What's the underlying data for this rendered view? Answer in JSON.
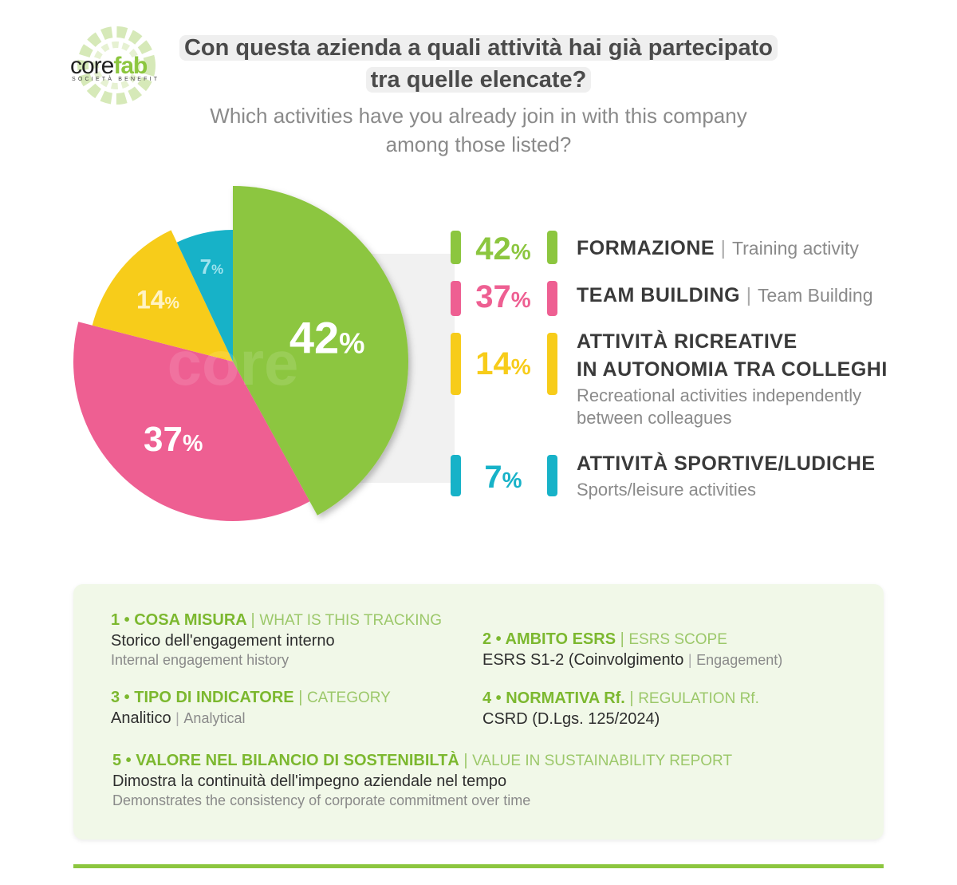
{
  "logo": {
    "word_a": "core",
    "word_b": "fab",
    "sub": "SOCIETÀ BENEFIT"
  },
  "header": {
    "title_line1": "Con questa azienda a quali attività hai già partecipato",
    "title_line2": "tra quelle elencate?",
    "subtitle_line1": "Which activities have you already join in with this company",
    "subtitle_line2": "among those listed?"
  },
  "colors": {
    "green": "#8cc63f",
    "pink": "#ee5f92",
    "yellow": "#f7cc1a",
    "cyan": "#17b2c8"
  },
  "chart_data": {
    "type": "pie",
    "title": "Con questa azienda a quali attività hai già partecipato tra quelle elencate?",
    "unit": "%",
    "slices": [
      {
        "label": "FORMAZIONE",
        "label_en": "Training activity",
        "value": 42,
        "color": "#8cc63f"
      },
      {
        "label": "TEAM BUILDING",
        "label_en": "Team Building",
        "value": 37,
        "color": "#ee5f92"
      },
      {
        "label": "ATTIVITÀ RICREATIVE IN AUTONOMIA TRA COLLEGHI",
        "label_en": "Recreational activities independently between colleagues",
        "value": 14,
        "color": "#f7cc1a"
      },
      {
        "label": "ATTIVITÀ SPORTIVE/LUDICHE",
        "label_en": "Sports/leisure activities",
        "value": 7,
        "color": "#17b2c8"
      }
    ]
  },
  "legend": [
    {
      "pct": "42",
      "title": "FORMAZIONE",
      "title_en": "Training activity"
    },
    {
      "pct": "37",
      "title": "TEAM BUILDING",
      "title_en": "Team Building"
    },
    {
      "pct": "14",
      "title_l1": "ATTIVITÀ RICREATIVE",
      "title_l2": "IN AUTONOMIA TRA COLLEGHI",
      "desc_l1": "Recreational activities independently",
      "desc_l2": "between colleagues"
    },
    {
      "pct": "7",
      "title": "ATTIVITÀ SPORTIVE/LUDICHE",
      "desc": "Sports/leisure activities"
    }
  ],
  "percent_sign": "%",
  "separator": "|",
  "info": {
    "i1": {
      "head": "1 • COSA MISURA",
      "head_en": "WHAT IS THIS TRACKING",
      "value": "Storico dell'engagement interno",
      "value_en": "Internal engagement history"
    },
    "i2": {
      "head": "2 • AMBITO ESRS",
      "head_en": "ESRS SCOPE",
      "value": "ESRS S1-2 (Coinvolgimento",
      "value_en": "Engagement)"
    },
    "i3": {
      "head": "3 • TIPO DI INDICATORE",
      "head_en": "CATEGORY",
      "value": "Analitico",
      "value_en": "Analytical"
    },
    "i4": {
      "head": "4 • NORMATIVA Rf.",
      "head_en": "REGULATION Rf.",
      "value": "CSRD (D.Lgs. 125/2024)"
    },
    "i5": {
      "head": "5 • VALORE NEL BILANCIO DI SOSTENIBILTÀ",
      "head_en": "VALUE IN SUSTAINABILITY REPORT",
      "value": "Dimostra la continuità dell'impegno aziendale nel tempo",
      "value_en": "Demonstrates the consistency of corporate commitment over time"
    }
  }
}
